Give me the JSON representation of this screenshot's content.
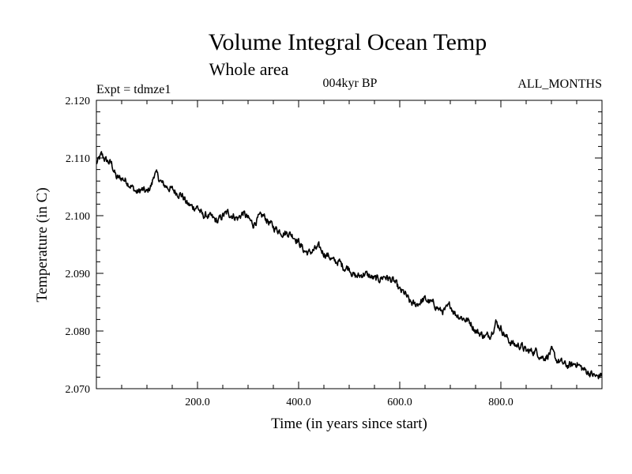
{
  "chart_data": {
    "type": "line",
    "title": "Volume Integral Ocean Temp",
    "subtitle": "Whole area",
    "annotations": {
      "left": "Expt = tdmze1",
      "center": "004kyr BP",
      "right": "ALL_MONTHS"
    },
    "xlabel": "Time (in years since start)",
    "ylabel": "Temperature (in C)",
    "xlim": [
      0,
      1000
    ],
    "ylim": [
      2.07,
      2.12
    ],
    "x_ticks": [
      200,
      400,
      600,
      800
    ],
    "x_tick_labels": [
      "200.0",
      "400.0",
      "600.0",
      "800.0"
    ],
    "y_ticks": [
      2.07,
      2.08,
      2.09,
      2.1,
      2.11,
      2.12
    ],
    "y_tick_labels": [
      "2.070",
      "2.080",
      "2.090",
      "2.100",
      "2.110",
      "2.120"
    ],
    "grid": false,
    "series": [
      {
        "name": "Volume Integral Ocean Temp",
        "color": "#000000",
        "x": [
          0,
          10,
          20,
          30,
          40,
          50,
          60,
          70,
          80,
          90,
          100,
          110,
          115,
          120,
          130,
          140,
          150,
          160,
          170,
          180,
          190,
          200,
          210,
          220,
          230,
          240,
          250,
          260,
          270,
          280,
          290,
          300,
          310,
          320,
          330,
          340,
          350,
          360,
          370,
          380,
          390,
          400,
          410,
          420,
          430,
          440,
          450,
          460,
          470,
          480,
          490,
          500,
          510,
          520,
          530,
          540,
          550,
          560,
          570,
          580,
          590,
          600,
          610,
          620,
          630,
          640,
          650,
          660,
          670,
          680,
          690,
          700,
          710,
          720,
          730,
          740,
          750,
          760,
          770,
          780,
          790,
          800,
          810,
          820,
          830,
          840,
          850,
          860,
          870,
          880,
          890,
          900,
          910,
          920,
          930,
          940,
          950,
          960,
          970,
          980,
          990,
          1000
        ],
        "values": [
          2.109,
          2.1105,
          2.1095,
          2.109,
          2.1065,
          2.1065,
          2.106,
          2.105,
          2.104,
          2.1045,
          2.104,
          2.1055,
          2.1075,
          2.107,
          2.1055,
          2.105,
          2.1045,
          2.104,
          2.1035,
          2.102,
          2.1015,
          2.1015,
          2.1,
          2.1,
          2.0995,
          2.099,
          2.1,
          2.1005,
          2.1,
          2.0995,
          2.1005,
          2.0995,
          2.0985,
          2.0995,
          2.1,
          2.099,
          2.098,
          2.0975,
          2.097,
          2.097,
          2.0965,
          2.0955,
          2.094,
          2.0935,
          2.094,
          2.0945,
          2.0935,
          2.093,
          2.092,
          2.092,
          2.091,
          2.091,
          2.0895,
          2.0895,
          2.09,
          2.0895,
          2.089,
          2.089,
          2.0895,
          2.089,
          2.0885,
          2.087,
          2.0865,
          2.085,
          2.0845,
          2.085,
          2.0855,
          2.085,
          2.0845,
          2.0835,
          2.0835,
          2.0845,
          2.083,
          2.0825,
          2.082,
          2.0815,
          2.08,
          2.0795,
          2.079,
          2.0795,
          2.0815,
          2.0805,
          2.079,
          2.078,
          2.0775,
          2.0775,
          2.0765,
          2.0765,
          2.0765,
          2.0755,
          2.0755,
          2.0765,
          2.075,
          2.0745,
          2.074,
          2.074,
          2.0745,
          2.0735,
          2.073,
          2.0725,
          2.072,
          2.0725
        ]
      }
    ]
  }
}
